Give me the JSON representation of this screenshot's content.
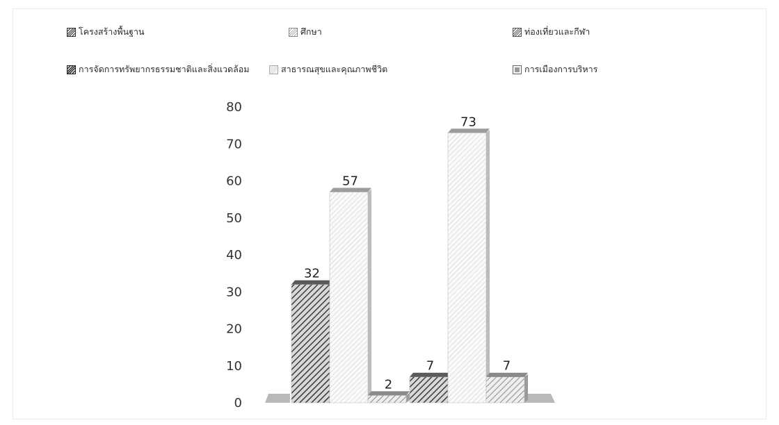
{
  "chart_data": {
    "type": "bar",
    "ylim": [
      0,
      80
    ],
    "yticks": [
      0,
      10,
      20,
      30,
      40,
      50,
      60,
      70,
      80
    ],
    "grid": false,
    "legend_position": "top",
    "series": [
      {
        "name": "โครงสร้างพื้นฐาน",
        "values": [
          32,
          7
        ],
        "pattern": "dark-hatch",
        "color": "#4d4d4d"
      },
      {
        "name": "ศึกษา",
        "values": [
          57,
          73
        ],
        "pattern": "light-hatch",
        "color": "#c9c9c9"
      },
      {
        "name": "ท่องเที่ยวและกีฬา",
        "values": [
          2,
          7
        ],
        "pattern": "mid-hatch",
        "color": "#8a8a8a"
      },
      {
        "name": "การจัดการทรัพยากรธรรมชาติและสิ่งแวดล้อม",
        "values": [],
        "pattern": "dark-hatch",
        "color": "#3c3c3c"
      },
      {
        "name": "สาธารณสุขและคุณภาพชีวิต",
        "values": [],
        "pattern": "light-dots",
        "color": "#dedede"
      },
      {
        "name": "การเมืองการบริหาร",
        "values": [],
        "pattern": "gray",
        "color": "#9a9a9a"
      }
    ],
    "data_labels": [
      "32",
      "57",
      "2",
      "7",
      "73",
      "7"
    ]
  }
}
